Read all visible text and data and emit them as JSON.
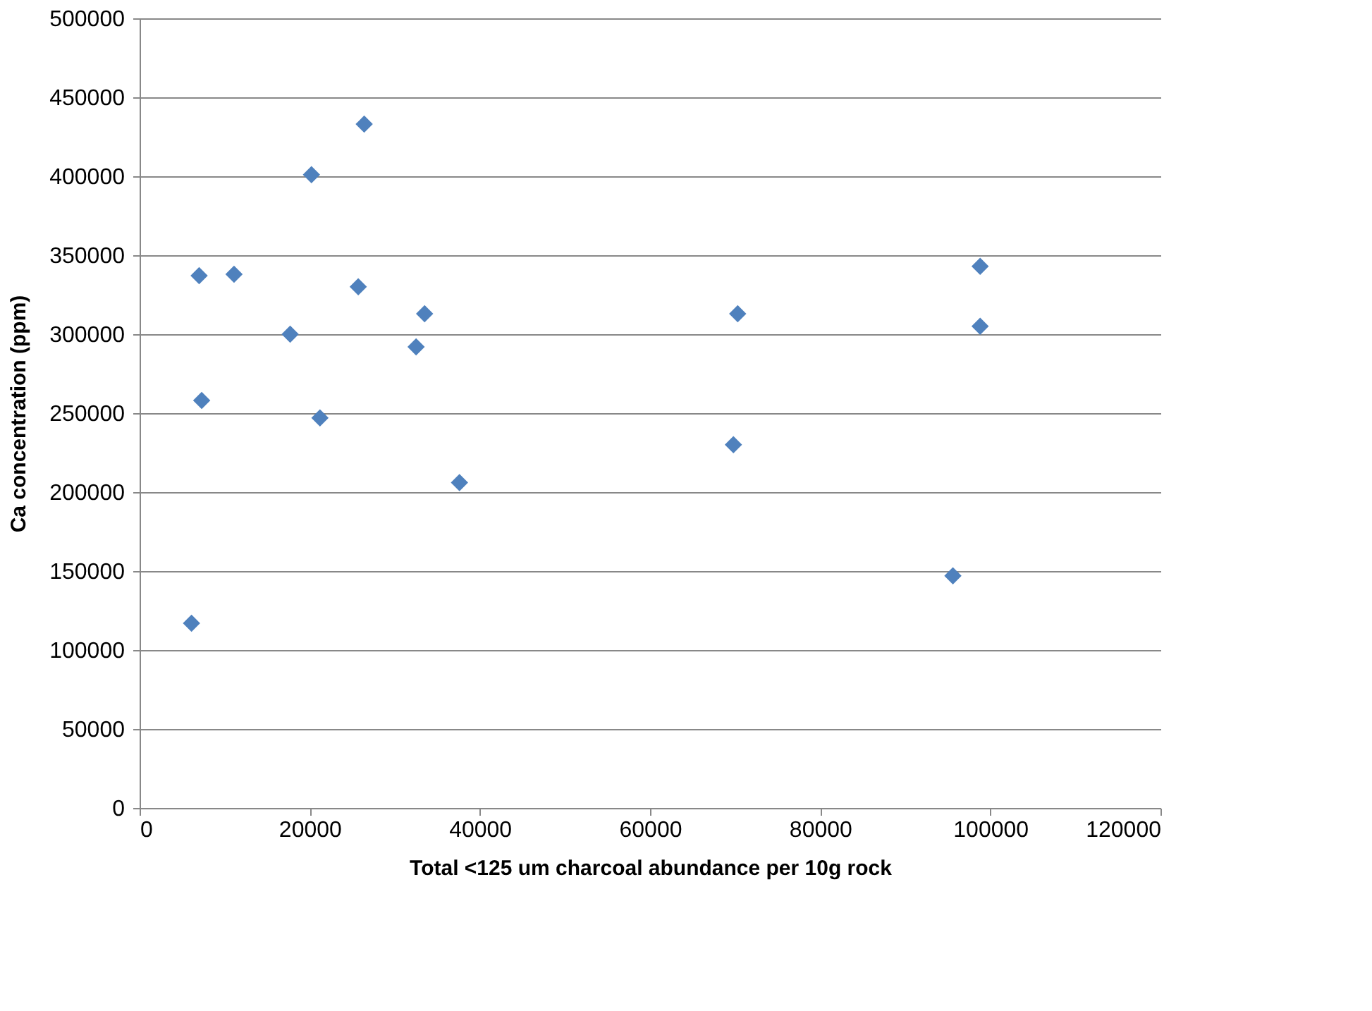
{
  "chart_data": {
    "type": "scatter",
    "xlabel": "Total <125 um charcoal abundance per 10g rock",
    "ylabel": "Ca concentration (ppm)",
    "x": [
      7000,
      11100,
      7300,
      6100,
      17700,
      20200,
      21200,
      26400,
      25700,
      33500,
      32500,
      37600,
      70300,
      69800,
      98800,
      98800,
      95600
    ],
    "series": [
      {
        "color": "#4f81bd",
        "values": [
          337000,
          338000,
          258000,
          117000,
          300000,
          401000,
          247000,
          433000,
          330000,
          313000,
          292000,
          206000,
          313000,
          230000,
          343000,
          305000,
          147000
        ]
      }
    ],
    "xlim": [
      0,
      120000
    ],
    "xticks": [
      0,
      20000,
      40000,
      60000,
      80000,
      100000,
      120000
    ],
    "ylim": [
      0,
      500000
    ],
    "yticks": [
      0,
      50000,
      100000,
      150000,
      200000,
      250000,
      300000,
      350000,
      400000,
      450000,
      500000
    ],
    "grid": "y",
    "marker": "diamond",
    "legend": false
  }
}
